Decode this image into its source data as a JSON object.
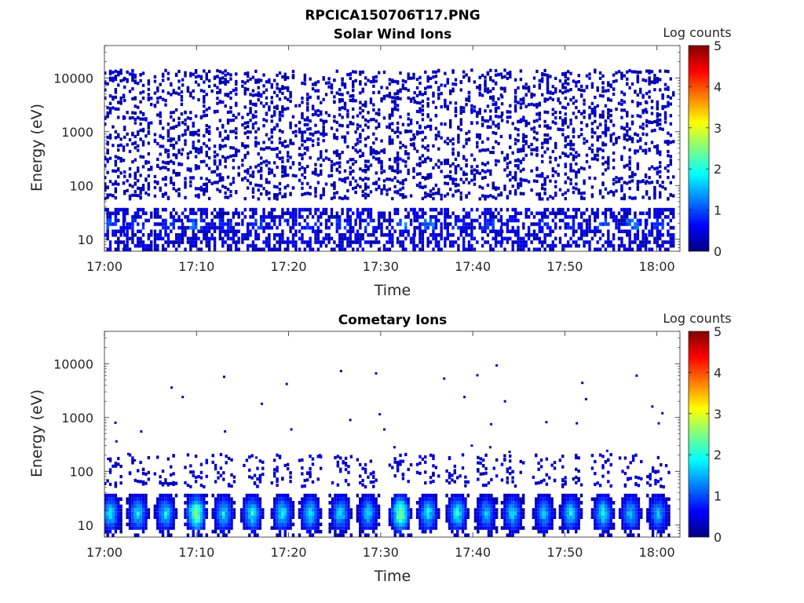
{
  "figure": {
    "title": "RPCICA150706T17.PNG"
  },
  "colormap": {
    "name": "jet",
    "stops": [
      "#00007f",
      "#0000ff",
      "#007fff",
      "#00ffff",
      "#7fff7f",
      "#ffff00",
      "#ff7f00",
      "#ff0000",
      "#7f0000"
    ]
  },
  "chart_data": [
    {
      "type": "heatmap",
      "title": "Solar Wind Ions",
      "xlabel": "Time",
      "ylabel": "Energy (eV)",
      "x_ticks": [
        "17:00",
        "17:10",
        "17:20",
        "17:30",
        "17:40",
        "17:50",
        "18:00"
      ],
      "x_tick_minutes": [
        0,
        10,
        20,
        30,
        40,
        50,
        60
      ],
      "xlim_minutes": [
        0,
        62.5
      ],
      "y_scale": "log",
      "y_ticks": [
        "10",
        "100",
        "1000",
        "10000"
      ],
      "y_tick_values": [
        10,
        100,
        1000,
        10000
      ],
      "ylim": [
        6,
        40000
      ],
      "colorbar": {
        "label": "Log counts",
        "ticks": [
          "0",
          "1",
          "2",
          "3",
          "4",
          "5"
        ],
        "range": [
          0,
          5
        ]
      },
      "scan_centers_minutes": [
        0.5,
        3.5,
        6.8,
        9.8,
        13.0,
        16.3,
        19.2,
        22.5,
        25.7,
        28.8,
        32.0,
        35.0,
        38.3,
        41.5,
        44.5,
        47.7,
        50.8,
        54.0,
        57.2,
        60.2
      ],
      "low_energy_peak_log_counts": [
        1.1,
        1.0,
        0.9,
        1.3,
        0.9,
        1.0,
        0.9,
        1.0,
        1.0,
        0.9,
        1.4,
        1.3,
        0.9,
        1.0,
        0.9,
        0.9,
        0.9,
        1.1,
        1.3,
        1.0
      ],
      "low_energy_peak_eV": 30,
      "high_energy_max_eV": 15000
    },
    {
      "type": "heatmap",
      "title": "Cometary Ions",
      "xlabel": "Time",
      "ylabel": "Energy (eV)",
      "x_ticks": [
        "17:00",
        "17:10",
        "17:20",
        "17:30",
        "17:40",
        "17:50",
        "18:00"
      ],
      "x_tick_minutes": [
        0,
        10,
        20,
        30,
        40,
        50,
        60
      ],
      "xlim_minutes": [
        0,
        62.5
      ],
      "y_scale": "log",
      "y_ticks": [
        "10",
        "100",
        "1000",
        "10000"
      ],
      "y_tick_values": [
        10,
        100,
        1000,
        10000
      ],
      "ylim": [
        6,
        40000
      ],
      "colorbar": {
        "label": "Log counts",
        "ticks": [
          "0",
          "1",
          "2",
          "3",
          "4",
          "5"
        ],
        "range": [
          0,
          5
        ]
      },
      "scan_centers_minutes": [
        0.5,
        3.5,
        6.5,
        9.8,
        12.8,
        15.9,
        19.2,
        22.2,
        25.5,
        28.5,
        32.0,
        35.0,
        38.2,
        41.3,
        44.2,
        47.6,
        50.5,
        54.0,
        57.0,
        60.0
      ],
      "peak_log_counts": [
        2.1,
        2.0,
        2.0,
        3.0,
        2.0,
        2.2,
        2.1,
        2.1,
        2.0,
        1.9,
        3.0,
        2.1,
        2.2,
        1.8,
        2.0,
        1.8,
        2.0,
        2.2,
        1.9,
        1.8
      ],
      "peak_eV": 25,
      "sparse_points": [
        {
          "t": 0.4,
          "e": 170
        },
        {
          "t": 1.2,
          "e": 800
        },
        {
          "t": 1.3,
          "e": 360
        },
        {
          "t": 2.6,
          "e": 210
        },
        {
          "t": 3.3,
          "e": 160
        },
        {
          "t": 4.0,
          "e": 550
        },
        {
          "t": 7.3,
          "e": 3600
        },
        {
          "t": 8.5,
          "e": 2400
        },
        {
          "t": 13.0,
          "e": 5700
        },
        {
          "t": 13.1,
          "e": 550
        },
        {
          "t": 16.5,
          "e": 180
        },
        {
          "t": 17.1,
          "e": 1800
        },
        {
          "t": 19.8,
          "e": 4200
        },
        {
          "t": 20.3,
          "e": 600
        },
        {
          "t": 23.4,
          "e": 200
        },
        {
          "t": 25.7,
          "e": 7300
        },
        {
          "t": 26.7,
          "e": 900
        },
        {
          "t": 29.5,
          "e": 6600
        },
        {
          "t": 29.9,
          "e": 1150
        },
        {
          "t": 30.4,
          "e": 600
        },
        {
          "t": 31.5,
          "e": 280
        },
        {
          "t": 36.9,
          "e": 5300
        },
        {
          "t": 39.1,
          "e": 2400
        },
        {
          "t": 39.9,
          "e": 300
        },
        {
          "t": 40.5,
          "e": 6100
        },
        {
          "t": 41.9,
          "e": 280
        },
        {
          "t": 42.0,
          "e": 750
        },
        {
          "t": 42.6,
          "e": 9300
        },
        {
          "t": 43.5,
          "e": 2000
        },
        {
          "t": 44.0,
          "e": 230
        },
        {
          "t": 48.0,
          "e": 820
        },
        {
          "t": 51.3,
          "e": 780
        },
        {
          "t": 51.9,
          "e": 4400
        },
        {
          "t": 52.3,
          "e": 2200
        },
        {
          "t": 54.6,
          "e": 240
        },
        {
          "t": 57.8,
          "e": 6000
        },
        {
          "t": 59.5,
          "e": 1600
        },
        {
          "t": 60.2,
          "e": 780
        },
        {
          "t": 60.6,
          "e": 1200
        }
      ]
    }
  ]
}
